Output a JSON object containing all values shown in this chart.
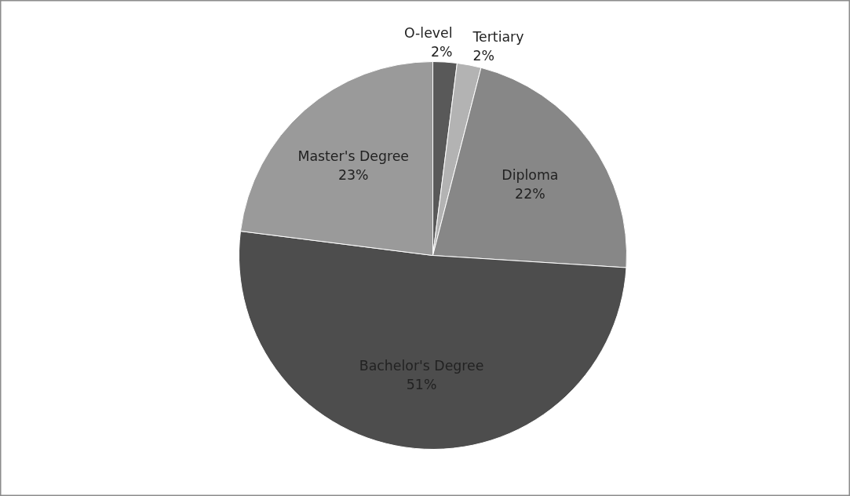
{
  "chart_data": {
    "type": "pie",
    "categories": [
      "O-level",
      "Tertiary",
      "Diploma",
      "Bachelor's Degree",
      "Master's Degree"
    ],
    "values": [
      2,
      2,
      22,
      51,
      23
    ],
    "colors": [
      "#595959",
      "#b3b3b3",
      "#878787",
      "#4d4d4d",
      "#9a9a9a"
    ],
    "value_labels": [
      "2%",
      "2%",
      "22%",
      "51%",
      "23%"
    ]
  }
}
